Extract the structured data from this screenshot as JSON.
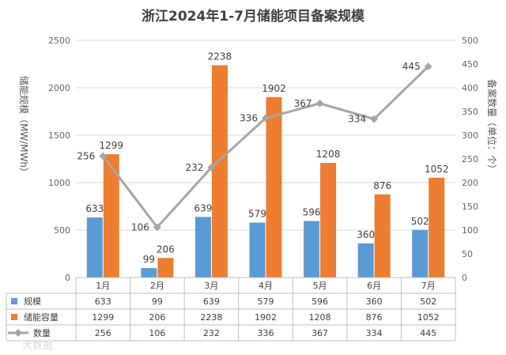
{
  "chart_data": {
    "type": "bar",
    "title": "浙江2024年1-7月储能项目备案规模",
    "categories": [
      "1月",
      "2月",
      "3月",
      "4月",
      "5月",
      "6月",
      "7月"
    ],
    "series": [
      {
        "name": "规模",
        "type": "bar",
        "axis": "left",
        "color": "#5B9BD5",
        "values": [
          633,
          99,
          639,
          579,
          596,
          360,
          502
        ]
      },
      {
        "name": "储能容量",
        "type": "bar",
        "axis": "left",
        "color": "#ED7D31",
        "values": [
          1299,
          206,
          2238,
          1902,
          1208,
          876,
          1052
        ]
      },
      {
        "name": "数量",
        "type": "line",
        "axis": "right",
        "color": "#A5A5A5",
        "values": [
          256,
          106,
          232,
          336,
          367,
          334,
          445
        ]
      }
    ],
    "ylabel": "储能规模（MW/MWh）",
    "y2label": "备案数量（单位：个）",
    "ylim": [
      0,
      2500
    ],
    "yticks": [
      0,
      500,
      1000,
      1500,
      2000,
      2500
    ],
    "y2lim": [
      0,
      500
    ],
    "y2ticks": [
      0,
      50,
      100,
      150,
      200,
      250,
      300,
      350,
      400,
      450,
      500
    ],
    "grid": true,
    "legend": "data table below chart",
    "watermark": "大数据"
  }
}
